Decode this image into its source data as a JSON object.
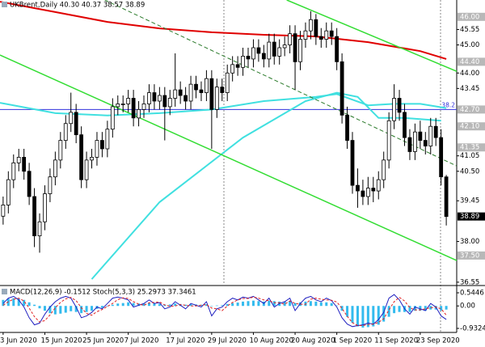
{
  "chart_data": {
    "type": "candlestick",
    "title": "UKBrent,Daily  40.30 40.37 38.57 38.89",
    "categories": [
      "3 Jun 2020",
      null,
      null,
      null,
      null,
      null,
      null,
      null,
      "15 Jun 2020",
      null,
      null,
      null,
      null,
      null,
      null,
      null,
      "25 Jun 2020",
      null,
      null,
      null,
      null,
      null,
      null,
      null,
      "7 Jul 2020",
      null,
      null,
      null,
      null,
      null,
      null,
      null,
      "17 Jul 2020",
      null,
      null,
      null,
      null,
      null,
      null,
      null,
      "29 Jul 2020",
      null,
      null,
      null,
      null,
      null,
      null,
      null,
      "10 Aug 2020",
      null,
      null,
      null,
      null,
      null,
      null,
      null,
      "20 Aug 2020",
      null,
      null,
      null,
      null,
      null,
      null,
      null,
      "1 Sep 2020",
      null,
      null,
      null,
      null,
      null,
      null,
      null,
      "11 Sep 2020",
      null,
      null,
      null,
      null,
      null,
      null,
      null,
      "23 Sep 2020",
      null,
      null,
      null,
      null,
      null
    ],
    "xlim": [
      -0.6,
      87
    ],
    "ylim": [
      36.46,
      46.6
    ],
    "yticks": [
      {
        "value": 45.55,
        "label": "45.55"
      },
      {
        "value": 45,
        "label": "45.00"
      },
      {
        "value": 44,
        "label": "44.00"
      },
      {
        "value": 43.45,
        "label": "43.45"
      },
      {
        "value": 41.05,
        "label": "41.05"
      },
      {
        "value": 40.5,
        "label": "40.50"
      },
      {
        "value": 39.45,
        "label": "39.45"
      },
      {
        "value": 38,
        "label": "38.00"
      },
      {
        "value": 36.55,
        "label": "36.55"
      }
    ],
    "price_labels": [
      {
        "value": 46,
        "label": "46.00"
      },
      {
        "value": 44.4,
        "label": "44.40"
      },
      {
        "value": 42.7,
        "label": "42.70"
      },
      {
        "value": 42.1,
        "label": "42.10"
      },
      {
        "value": 41.35,
        "label": "41.35"
      },
      {
        "value": 37.5,
        "label": "37.50"
      }
    ],
    "last_price": {
      "value": 38.89,
      "label": "38.89"
    },
    "up_color": "#ffffff",
    "down_color": "#000000",
    "ohlc": [
      [
        38.9,
        39.6,
        38.6,
        39.3
      ],
      [
        39.3,
        40.5,
        39.0,
        40.2
      ],
      [
        40.2,
        41.1,
        39.9,
        40.8
      ],
      [
        40.8,
        41.3,
        40.5,
        41.0
      ],
      [
        41.0,
        41.3,
        40.2,
        40.5
      ],
      [
        40.5,
        40.8,
        39.3,
        39.6
      ],
      [
        39.6,
        39.9,
        37.8,
        38.2
      ],
      [
        38.2,
        39.0,
        37.6,
        38.7
      ],
      [
        38.7,
        40.0,
        38.4,
        39.7
      ],
      [
        39.7,
        40.6,
        39.4,
        40.3
      ],
      [
        40.3,
        41.2,
        40.0,
        40.9
      ],
      [
        40.9,
        41.9,
        40.6,
        41.6
      ],
      [
        41.6,
        42.5,
        41.3,
        42.2
      ],
      [
        42.2,
        43.3,
        41.9,
        42.6
      ],
      [
        42.6,
        42.9,
        41.5,
        41.8
      ],
      [
        41.8,
        42.1,
        39.9,
        40.2
      ],
      [
        40.2,
        41.2,
        39.9,
        40.9
      ],
      [
        40.9,
        41.3,
        40.6,
        41.0
      ],
      [
        41.0,
        41.9,
        40.7,
        41.6
      ],
      [
        41.6,
        41.9,
        41.0,
        41.3
      ],
      [
        41.3,
        42.3,
        41.0,
        42.0
      ],
      [
        42.0,
        43.1,
        41.7,
        42.8
      ],
      [
        42.8,
        43.2,
        42.5,
        42.9
      ],
      [
        42.9,
        43.2,
        42.6,
        42.9
      ],
      [
        42.9,
        43.4,
        42.6,
        43.1
      ],
      [
        43.1,
        43.4,
        42.1,
        42.4
      ],
      [
        42.4,
        43.0,
        42.1,
        42.7
      ],
      [
        42.7,
        43.2,
        42.4,
        42.9
      ],
      [
        42.9,
        43.6,
        42.6,
        43.3
      ],
      [
        43.3,
        43.6,
        42.7,
        43.0
      ],
      [
        43.0,
        43.5,
        42.7,
        43.2
      ],
      [
        43.2,
        43.5,
        41.6,
        42.8
      ],
      [
        42.8,
        43.4,
        42.5,
        43.1
      ],
      [
        43.1,
        44.7,
        42.8,
        43.4
      ],
      [
        43.4,
        43.7,
        42.9,
        43.2
      ],
      [
        43.2,
        43.5,
        42.7,
        43.0
      ],
      [
        43.0,
        43.9,
        42.7,
        43.6
      ],
      [
        43.6,
        43.9,
        43.1,
        43.4
      ],
      [
        43.4,
        43.7,
        43.0,
        43.3
      ],
      [
        43.3,
        44.1,
        43.0,
        43.8
      ],
      [
        43.8,
        44.1,
        41.3,
        42.7
      ],
      [
        42.7,
        43.8,
        42.4,
        43.5
      ],
      [
        43.5,
        43.8,
        43.0,
        43.3
      ],
      [
        43.3,
        44.3,
        43.0,
        44.0
      ],
      [
        44.0,
        44.6,
        43.7,
        44.3
      ],
      [
        44.3,
        44.6,
        43.9,
        44.2
      ],
      [
        44.2,
        44.9,
        43.9,
        44.6
      ],
      [
        44.6,
        44.9,
        44.2,
        44.5
      ],
      [
        44.5,
        45.2,
        44.2,
        44.9
      ],
      [
        44.9,
        45.2,
        44.4,
        44.7
      ],
      [
        44.7,
        45.0,
        44.2,
        44.5
      ],
      [
        44.5,
        45.4,
        44.2,
        45.1
      ],
      [
        45.1,
        45.4,
        44.3,
        44.6
      ],
      [
        44.6,
        45.2,
        44.3,
        44.9
      ],
      [
        44.9,
        45.3,
        44.6,
        45.0
      ],
      [
        45.0,
        45.7,
        44.7,
        45.4
      ],
      [
        45.4,
        45.7,
        43.4,
        44.4
      ],
      [
        44.4,
        45.5,
        44.1,
        45.2
      ],
      [
        45.2,
        45.8,
        44.9,
        45.5
      ],
      [
        45.5,
        46.2,
        45.2,
        45.9
      ],
      [
        45.9,
        46.1,
        45.0,
        45.3
      ],
      [
        45.3,
        45.6,
        44.9,
        45.2
      ],
      [
        45.2,
        45.8,
        44.9,
        45.5
      ],
      [
        45.5,
        45.8,
        45.0,
        45.3
      ],
      [
        45.3,
        45.6,
        44.1,
        44.4
      ],
      [
        44.4,
        44.7,
        42.2,
        42.5
      ],
      [
        42.5,
        42.8,
        41.3,
        41.6
      ],
      [
        41.6,
        41.9,
        39.7,
        40.0
      ],
      [
        40.0,
        40.6,
        39.2,
        39.8
      ],
      [
        39.8,
        40.2,
        39.3,
        39.6
      ],
      [
        39.6,
        40.3,
        39.3,
        39.9
      ],
      [
        39.9,
        40.3,
        39.4,
        39.8
      ],
      [
        39.8,
        40.5,
        39.5,
        40.2
      ],
      [
        40.2,
        41.2,
        39.9,
        40.9
      ],
      [
        40.9,
        42.6,
        40.6,
        42.3
      ],
      [
        42.3,
        43.6,
        42.0,
        43.1
      ],
      [
        43.1,
        43.4,
        42.3,
        42.6
      ],
      [
        42.6,
        42.9,
        41.4,
        41.7
      ],
      [
        41.7,
        42.0,
        40.9,
        41.2
      ],
      [
        41.2,
        42.2,
        40.9,
        41.9
      ],
      [
        41.9,
        42.3,
        41.3,
        41.6
      ],
      [
        41.6,
        41.9,
        41.1,
        41.4
      ],
      [
        41.4,
        42.4,
        41.1,
        42.1
      ],
      [
        42.1,
        42.4,
        41.4,
        41.7
      ],
      [
        41.7,
        42.0,
        40.0,
        40.3
      ],
      [
        40.3,
        40.37,
        38.57,
        38.89
      ]
    ],
    "lines": [
      {
        "color": "#e00000",
        "width": 2,
        "x": [
          -0.6,
          10,
          20,
          30,
          40,
          50,
          60,
          70,
          80,
          85
        ],
        "values": [
          46.54,
          46.17,
          45.82,
          45.59,
          45.45,
          45.36,
          45.3,
          45.1,
          44.78,
          44.5
        ]
      },
      {
        "color": "#40e0e0",
        "width": 2,
        "x": [
          -0.6,
          10,
          20,
          30,
          40,
          50,
          60,
          64,
          70,
          75,
          80,
          85
        ],
        "values": [
          42.94,
          42.57,
          42.49,
          42.57,
          42.7,
          43.0,
          43.15,
          43.25,
          42.85,
          42.9,
          42.9,
          42.75
        ]
      },
      {
        "color": "#40e0e0",
        "width": 2,
        "x": [
          17,
          30,
          46,
          58,
          64,
          68,
          72,
          77,
          84
        ],
        "values": [
          36.66,
          39.4,
          41.7,
          43.0,
          43.3,
          43.15,
          42.4,
          42.4,
          42.3
        ]
      },
      {
        "color": "#33dd33",
        "width": 1.5,
        "x": [
          -0.6,
          87
        ],
        "values": [
          44.64,
          37.32
        ]
      },
      {
        "color": "#33dd33",
        "width": 1.5,
        "x": [
          54.4,
          87
        ],
        "values": [
          46.6,
          44.06
        ]
      },
      {
        "color": "#2a7a2a",
        "width": 1,
        "dash": true,
        "x": [
          19.5,
          87
        ],
        "values": [
          46.6,
          40.69
        ]
      }
    ],
    "level": {
      "value": 42.7,
      "label": "38.2",
      "color": "#3333dd"
    },
    "indicator": {
      "title": "MACD(12,26,9) -0.1512 Stoch(5,3,3) 25.2973 37.3461",
      "ylim": [
        -0.9324,
        0.5446
      ],
      "yticks": [
        0.5446,
        {
          "value": 0,
          "label": "0.00"
        },
        -0.9324
      ],
      "histogram": {
        "color": "#33bbee",
        "values": [
          0.25,
          0.3,
          0.32,
          0.3,
          0.25,
          0.15,
          0.05,
          -0.1,
          -0.2,
          -0.3,
          -0.35,
          -0.32,
          -0.28,
          -0.22,
          -0.25,
          -0.3,
          -0.25,
          -0.2,
          -0.12,
          -0.08,
          -0.02,
          0.05,
          0.1,
          0.12,
          0.15,
          0.12,
          0.1,
          0.1,
          0.12,
          0.1,
          0.08,
          0.05,
          0.06,
          0.1,
          0.08,
          0.05,
          0.07,
          0.06,
          0.05,
          0.07,
          0,
          0.02,
          0.03,
          0.08,
          0.12,
          0.14,
          0.18,
          0.2,
          0.22,
          0.2,
          0.18,
          0.22,
          0.2,
          0.18,
          0.18,
          0.2,
          0.12,
          0.15,
          0.18,
          0.2,
          0.18,
          0.15,
          0.15,
          0.12,
          0.02,
          -0.2,
          -0.45,
          -0.7,
          -0.85,
          -0.9,
          -0.88,
          -0.85,
          -0.78,
          -0.65,
          -0.45,
          -0.3,
          -0.25,
          -0.25,
          -0.25,
          -0.2,
          -0.2,
          -0.2,
          -0.15,
          -0.15,
          -0.2,
          -0.1512
        ]
      },
      "stoch_ylim": [
        0,
        100
      ],
      "stoch": [
        {
          "color": "#2020c0",
          "values": [
            70,
            85,
            90,
            80,
            60,
            30,
            10,
            15,
            40,
            60,
            75,
            85,
            90,
            85,
            60,
            30,
            35,
            45,
            60,
            55,
            70,
            85,
            88,
            85,
            80,
            60,
            65,
            70,
            80,
            70,
            72,
            55,
            60,
            75,
            65,
            55,
            70,
            65,
            60,
            75,
            35,
            55,
            60,
            75,
            85,
            80,
            88,
            85,
            90,
            80,
            70,
            85,
            60,
            70,
            75,
            85,
            50,
            70,
            85,
            90,
            80,
            75,
            85,
            78,
            60,
            30,
            12,
            5,
            8,
            10,
            15,
            12,
            25,
            45,
            85,
            95,
            80,
            55,
            40,
            60,
            55,
            50,
            70,
            60,
            35,
            25.2973
          ]
        },
        {
          "color": "#e02020",
          "dash": true,
          "values": [
            65,
            75,
            82,
            85,
            77,
            57,
            33,
            18,
            22,
            38,
            58,
            73,
            83,
            87,
            78,
            58,
            42,
            37,
            47,
            53,
            62,
            70,
            81,
            86,
            84,
            75,
            68,
            65,
            72,
            73,
            74,
            66,
            62,
            63,
            67,
            65,
            63,
            63,
            65,
            67,
            57,
            55,
            50,
            63,
            73,
            80,
            84,
            84,
            88,
            85,
            80,
            78,
            72,
            72,
            68,
            77,
            70,
            68,
            68,
            82,
            85,
            82,
            80,
            79,
            74,
            56,
            34,
            16,
            8,
            8,
            11,
            12,
            17,
            27,
            52,
            75,
            87,
            77,
            58,
            52,
            52,
            55,
            58,
            60,
            55,
            37.3461
          ]
        }
      ]
    }
  }
}
